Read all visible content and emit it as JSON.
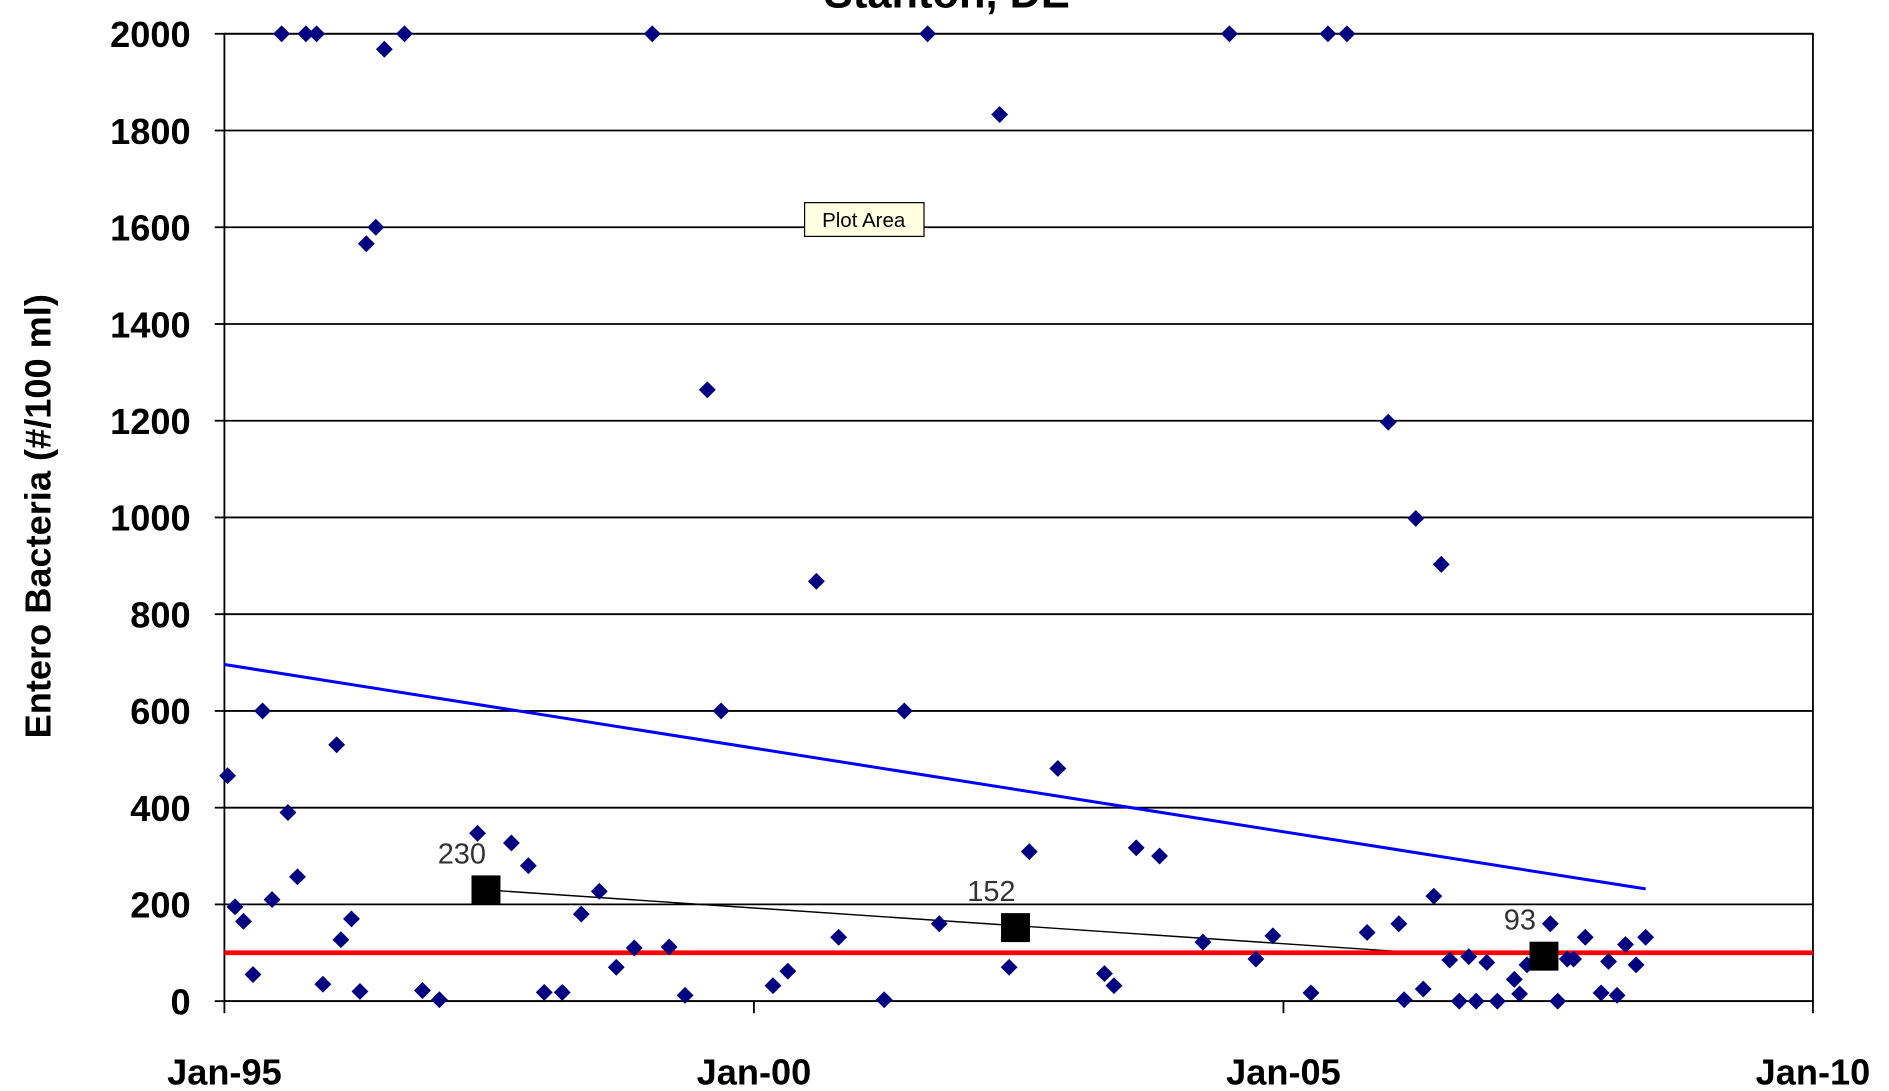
{
  "chart_data": {
    "type": "scatter",
    "title": "Stanton, DE",
    "ylabel": "Entero Bacteria (#/100 ml)",
    "annotation": "Plot Area",
    "xlim": [
      1995,
      2010
    ],
    "xticks": [
      {
        "value": 1995,
        "label": "Jan-95"
      },
      {
        "value": 2000,
        "label": "Jan-00"
      },
      {
        "value": 2005,
        "label": "Jan-05"
      },
      {
        "value": 2010,
        "label": "Jan-10"
      }
    ],
    "ylim": [
      0,
      2000
    ],
    "yticks": [
      0,
      200,
      400,
      600,
      800,
      1000,
      1200,
      1400,
      1600,
      1800,
      2000
    ],
    "grid": true,
    "series": [
      {
        "marker": "diamond",
        "color": "#000080",
        "x": [
          1995.03,
          1995.1,
          1995.18,
          1995.27,
          1995.36,
          1995.45,
          1995.54,
          1995.6,
          1995.69,
          1995.77,
          1995.87,
          1995.93,
          1996.06,
          1996.1,
          1996.2,
          1996.28,
          1996.34,
          1996.43,
          1996.51,
          1996.7,
          1996.87,
          1997.03,
          1997.39,
          1997.71,
          1997.87,
          1998.02,
          1998.19,
          1998.37,
          1998.54,
          1998.7,
          1998.87,
          1999.04,
          1999.2,
          1999.35,
          1999.56,
          1999.69,
          2000.18,
          2000.32,
          2000.59,
          2000.8,
          2001.23,
          2001.42,
          2001.64,
          2001.75,
          2002.32,
          2002.41,
          2002.6,
          2002.87,
          2003.31,
          2003.4,
          2003.61,
          2003.83,
          2004.24,
          2004.49,
          2004.74,
          2004.9,
          2005.26,
          2005.42,
          2005.6,
          2005.79,
          2005.99,
          2006.09,
          2006.14,
          2006.25,
          2006.32,
          2006.42,
          2006.49,
          2006.57,
          2006.66,
          2006.75,
          2006.82,
          2006.92,
          2007.02,
          2007.18,
          2007.23,
          2007.3,
          2007.52,
          2007.59,
          2007.68,
          2007.74,
          2007.85,
          2008.0,
          2008.07,
          2008.15,
          2008.23,
          2008.33,
          2008.42
        ],
        "values": [
          466,
          195,
          165,
          55,
          600,
          210,
          2000,
          390,
          257,
          2000,
          2000,
          35,
          530,
          127,
          170,
          20,
          1566,
          1600,
          1968,
          2000,
          22,
          3,
          347,
          327,
          280,
          18,
          18,
          180,
          227,
          70,
          110,
          2000,
          112,
          12,
          1264,
          600,
          32,
          62,
          868,
          132,
          3,
          600,
          2000,
          160,
          1833,
          70,
          309,
          481,
          57,
          32,
          317,
          300,
          122,
          2000,
          87,
          135,
          17,
          2000,
          2000,
          142,
          1197,
          160,
          3,
          998,
          25,
          217,
          903,
          85,
          0,
          92,
          0,
          80,
          0,
          45,
          15,
          75,
          160,
          0,
          87,
          87,
          132,
          17,
          82,
          12,
          117,
          75,
          132
        ]
      },
      {
        "marker": "square",
        "color": "#000000",
        "labels": true,
        "x": [
          1997.47,
          2002.47,
          2007.46
        ],
        "values": [
          230,
          152,
          93
        ]
      },
      {
        "marker": "line",
        "color": "#0000ff",
        "width": 2.5,
        "x": [
          1995,
          2008.42
        ],
        "values": [
          696,
          232
        ]
      },
      {
        "marker": "line",
        "color": "#000000",
        "width": 1.2,
        "x": [
          1997.47,
          2006.13
        ],
        "values": [
          230,
          102
        ]
      },
      {
        "marker": "line",
        "color": "#ff0000",
        "width": 4,
        "x": [
          1995,
          2010
        ],
        "values": [
          100,
          100
        ]
      }
    ]
  }
}
